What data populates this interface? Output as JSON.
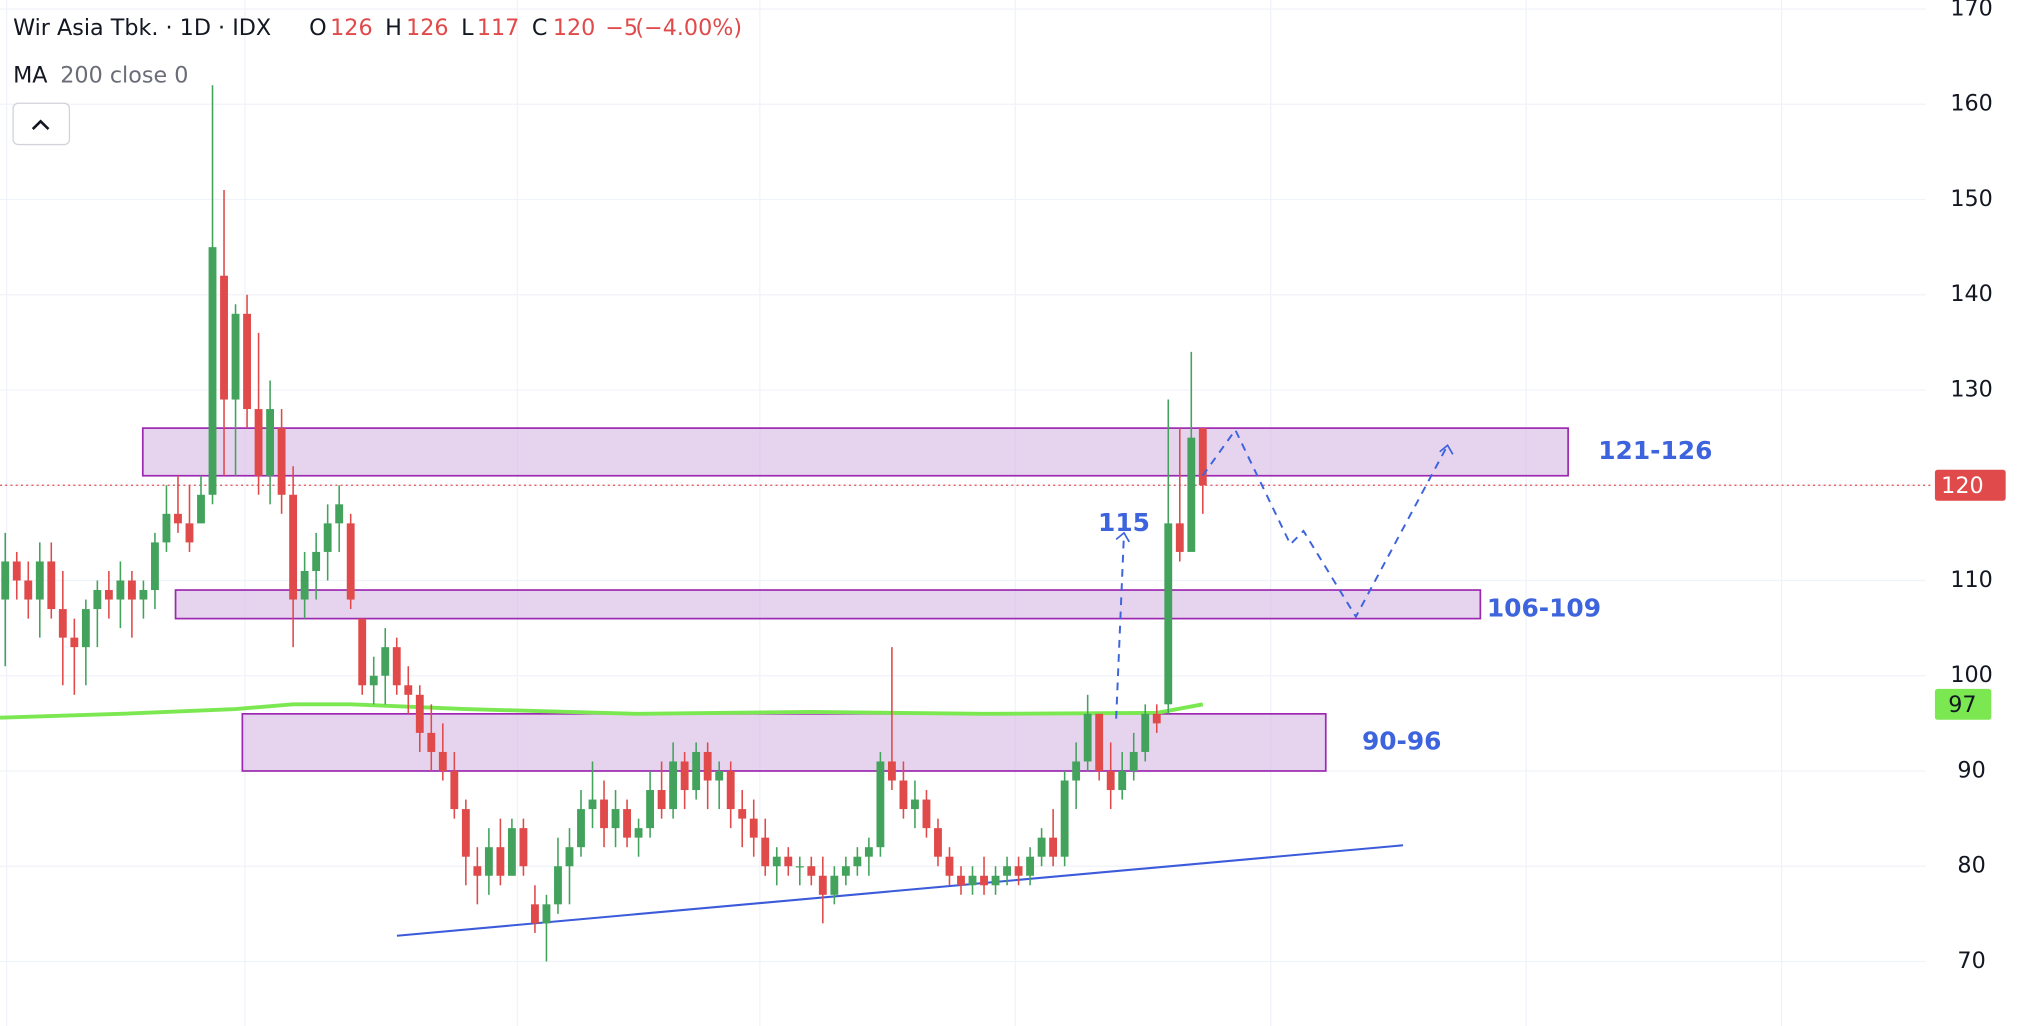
{
  "chart_data": {
    "type": "candlestick",
    "title": "Wir Asia Tbk. · 1D · IDX",
    "ohlc_header": [
      {
        "label": "O",
        "value": 126
      },
      {
        "label": "H",
        "value": 126
      },
      {
        "label": "L",
        "value": 117
      },
      {
        "label": "C",
        "value": 120
      }
    ],
    "change": {
      "value": -5,
      "label": "−5"
    },
    "change_pct": {
      "value": -4.0,
      "label": "(−4.00%)"
    },
    "indicator": {
      "name": "MA",
      "params": "200 close 0",
      "color": "#7be852",
      "x": [
        0,
        10,
        20,
        25,
        30,
        40,
        55,
        70,
        85,
        100,
        104
      ],
      "values": [
        95.6,
        96,
        96.5,
        97,
        97,
        96.5,
        96,
        96.2,
        96,
        96.1,
        97
      ]
    },
    "up_color": "#43a35d",
    "down_color": "#e04a4a",
    "open": [
      108,
      112,
      110,
      108,
      112,
      107,
      104,
      103,
      107,
      109,
      108,
      110,
      108,
      109,
      114,
      117,
      116,
      116,
      119,
      142,
      129,
      138,
      128,
      121,
      126,
      119,
      108,
      111,
      113,
      116,
      116,
      106,
      99,
      100,
      103,
      99,
      98,
      94,
      92,
      90,
      86,
      80,
      79,
      82,
      79,
      84,
      76,
      74,
      76,
      80,
      82,
      86,
      87,
      84,
      86,
      83,
      84,
      88,
      86,
      91,
      88,
      92,
      89,
      90,
      86,
      85,
      83,
      80,
      81,
      80,
      80,
      79,
      77,
      79,
      80,
      81,
      82,
      91,
      89,
      86,
      87,
      84,
      81,
      79,
      78,
      79,
      78,
      79,
      80,
      79,
      81,
      83,
      81,
      89,
      91,
      96,
      90,
      88,
      90,
      92,
      96,
      97,
      116,
      113,
      126
    ],
    "high": [
      115,
      113,
      112,
      114,
      114,
      111,
      106,
      108,
      110,
      111,
      112,
      111,
      110,
      115,
      120,
      121,
      120,
      121,
      162,
      151,
      139,
      140,
      136,
      131,
      128,
      122,
      113,
      115,
      118,
      120,
      117,
      106,
      102,
      105,
      104,
      101,
      99,
      97,
      95,
      92,
      87,
      82,
      84,
      85,
      85,
      85,
      78,
      77,
      83,
      84,
      88,
      91,
      89,
      88,
      87,
      85,
      90,
      91,
      93,
      92,
      93,
      93,
      91,
      91,
      88,
      87,
      85,
      82,
      82,
      81,
      81,
      81,
      80,
      81,
      82,
      83,
      92,
      103,
      91,
      89,
      88,
      85,
      82,
      80,
      80,
      81,
      80,
      81,
      81,
      82,
      84,
      86,
      90,
      93,
      98,
      96,
      93,
      92,
      94,
      97,
      97,
      129,
      126,
      134,
      126
    ],
    "low": [
      101,
      108,
      106,
      104,
      106,
      99,
      98,
      99,
      103,
      106,
      105,
      104,
      106,
      107,
      113,
      115,
      113,
      116,
      118,
      121,
      121,
      126,
      119,
      118,
      117,
      103,
      106,
      108,
      110,
      113,
      107,
      98,
      97,
      97,
      98,
      96,
      92,
      90,
      89,
      85,
      78,
      76,
      77,
      78,
      79,
      79,
      73,
      70,
      75,
      76,
      81,
      84,
      82,
      82,
      82,
      81,
      83,
      85,
      85,
      86,
      87,
      86,
      86,
      84,
      82,
      81,
      79,
      78,
      79,
      78,
      78,
      74,
      76,
      78,
      79,
      79,
      81,
      88,
      85,
      84,
      83,
      80,
      78,
      77,
      77,
      77,
      77,
      78,
      78,
      78,
      80,
      80,
      80,
      86,
      90,
      89,
      86,
      87,
      89,
      91,
      94,
      96,
      112,
      114,
      117
    ],
    "close": [
      112,
      110,
      108,
      112,
      107,
      104,
      103,
      107,
      109,
      108,
      110,
      108,
      109,
      114,
      117,
      116,
      114,
      119,
      145,
      129,
      138,
      128,
      121,
      128,
      119,
      108,
      111,
      113,
      116,
      118,
      108,
      99,
      100,
      103,
      99,
      98,
      94,
      92,
      90,
      86,
      81,
      79,
      82,
      79,
      84,
      80,
      74,
      76,
      80,
      82,
      86,
      87,
      84,
      86,
      83,
      84,
      88,
      86,
      91,
      88,
      92,
      89,
      90,
      86,
      85,
      83,
      80,
      81,
      80,
      80,
      79,
      77,
      79,
      80,
      81,
      82,
      91,
      89,
      86,
      87,
      84,
      81,
      79,
      78,
      79,
      78,
      79,
      80,
      79,
      81,
      83,
      81,
      89,
      91,
      96,
      90,
      88,
      90,
      92,
      96,
      95,
      116,
      113,
      125,
      120
    ],
    "last_price": {
      "value": 120,
      "color": "#e04a4a"
    },
    "indicator_label": {
      "value": 97,
      "color": "#7be852"
    },
    "zones": [
      {
        "low": 121,
        "high": 126,
        "label": "121-126"
      },
      {
        "low": 106,
        "high": 109,
        "label": "106-109"
      },
      {
        "low": 90,
        "high": 96,
        "label": "90-96"
      }
    ],
    "trendline": {
      "values": [
        72.7,
        82.2
      ],
      "color": "#3b5bdb"
    },
    "dashed_paths": [
      {
        "values": [
          95.5,
          115
        ]
      },
      {
        "values": [
          121,
          125.8,
          113.8,
          115.2,
          106.2,
          124.2
        ]
      }
    ],
    "ylim": [
      63.225,
      170.95
    ],
    "yticks": [
      70,
      80,
      90,
      100,
      110,
      120,
      130,
      140,
      150,
      160,
      170
    ]
  }
}
